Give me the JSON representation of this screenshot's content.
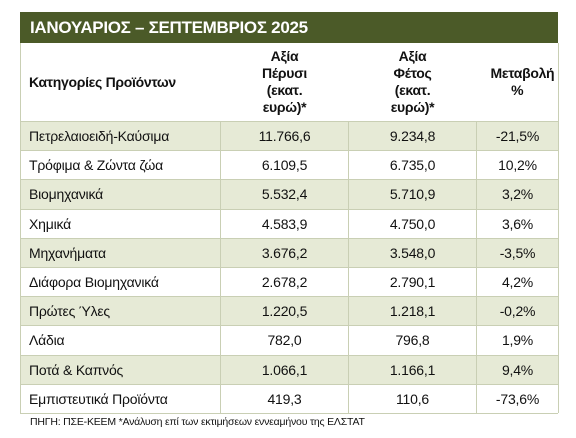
{
  "header": {
    "title": "ΙΑΝΟΥΑΡΙΟΣ – ΣΕΠΤΕΜΒΡΙΟΣ 2025"
  },
  "table": {
    "columns": [
      "Κατηγορίες Προϊόντων",
      "Αξία Πέρυσι (εκατ. ευρώ)*",
      "Αξία Φέτος (εκατ. ευρώ)*",
      "Μεταβολή %"
    ],
    "rows": [
      [
        "Πετρελαιοειδή-Καύσιμα",
        "11.766,6",
        "9.234,8",
        "-21,5%"
      ],
      [
        "Τρόφιμα & Ζώντα ζώα",
        "6.109,5",
        "6.735,0",
        "10,2%"
      ],
      [
        "Βιομηχανικά",
        "5.532,4",
        "5.710,9",
        "3,2%"
      ],
      [
        "Χημικά",
        "4.583,9",
        "4.750,0",
        "3,6%"
      ],
      [
        "Μηχανήματα",
        "3.676,2",
        "3.548,0",
        "-3,5%"
      ],
      [
        "Διάφορα Βιομηχανικά",
        "2.678,2",
        "2.790,1",
        "4,2%"
      ],
      [
        "Πρώτες Ύλες",
        "1.220,5",
        "1.218,1",
        "-0,2%"
      ],
      [
        "Λάδια",
        "782,0",
        "796,8",
        "1,9%"
      ],
      [
        "Ποτά & Καπνός",
        "1.066,1",
        "1.166,1",
        "9,4%"
      ],
      [
        "Εμπιστευτικά Προϊόντα",
        "419,3",
        "110,6",
        "-73,6%"
      ]
    ]
  },
  "footer": {
    "note": "ΠΗΓΗ: ΠΣΕ-ΚΕΕΜ *Ανάλυση επί των εκτιμήσεων εννεαμήνου της ΕΛΣΤΑΤ"
  }
}
